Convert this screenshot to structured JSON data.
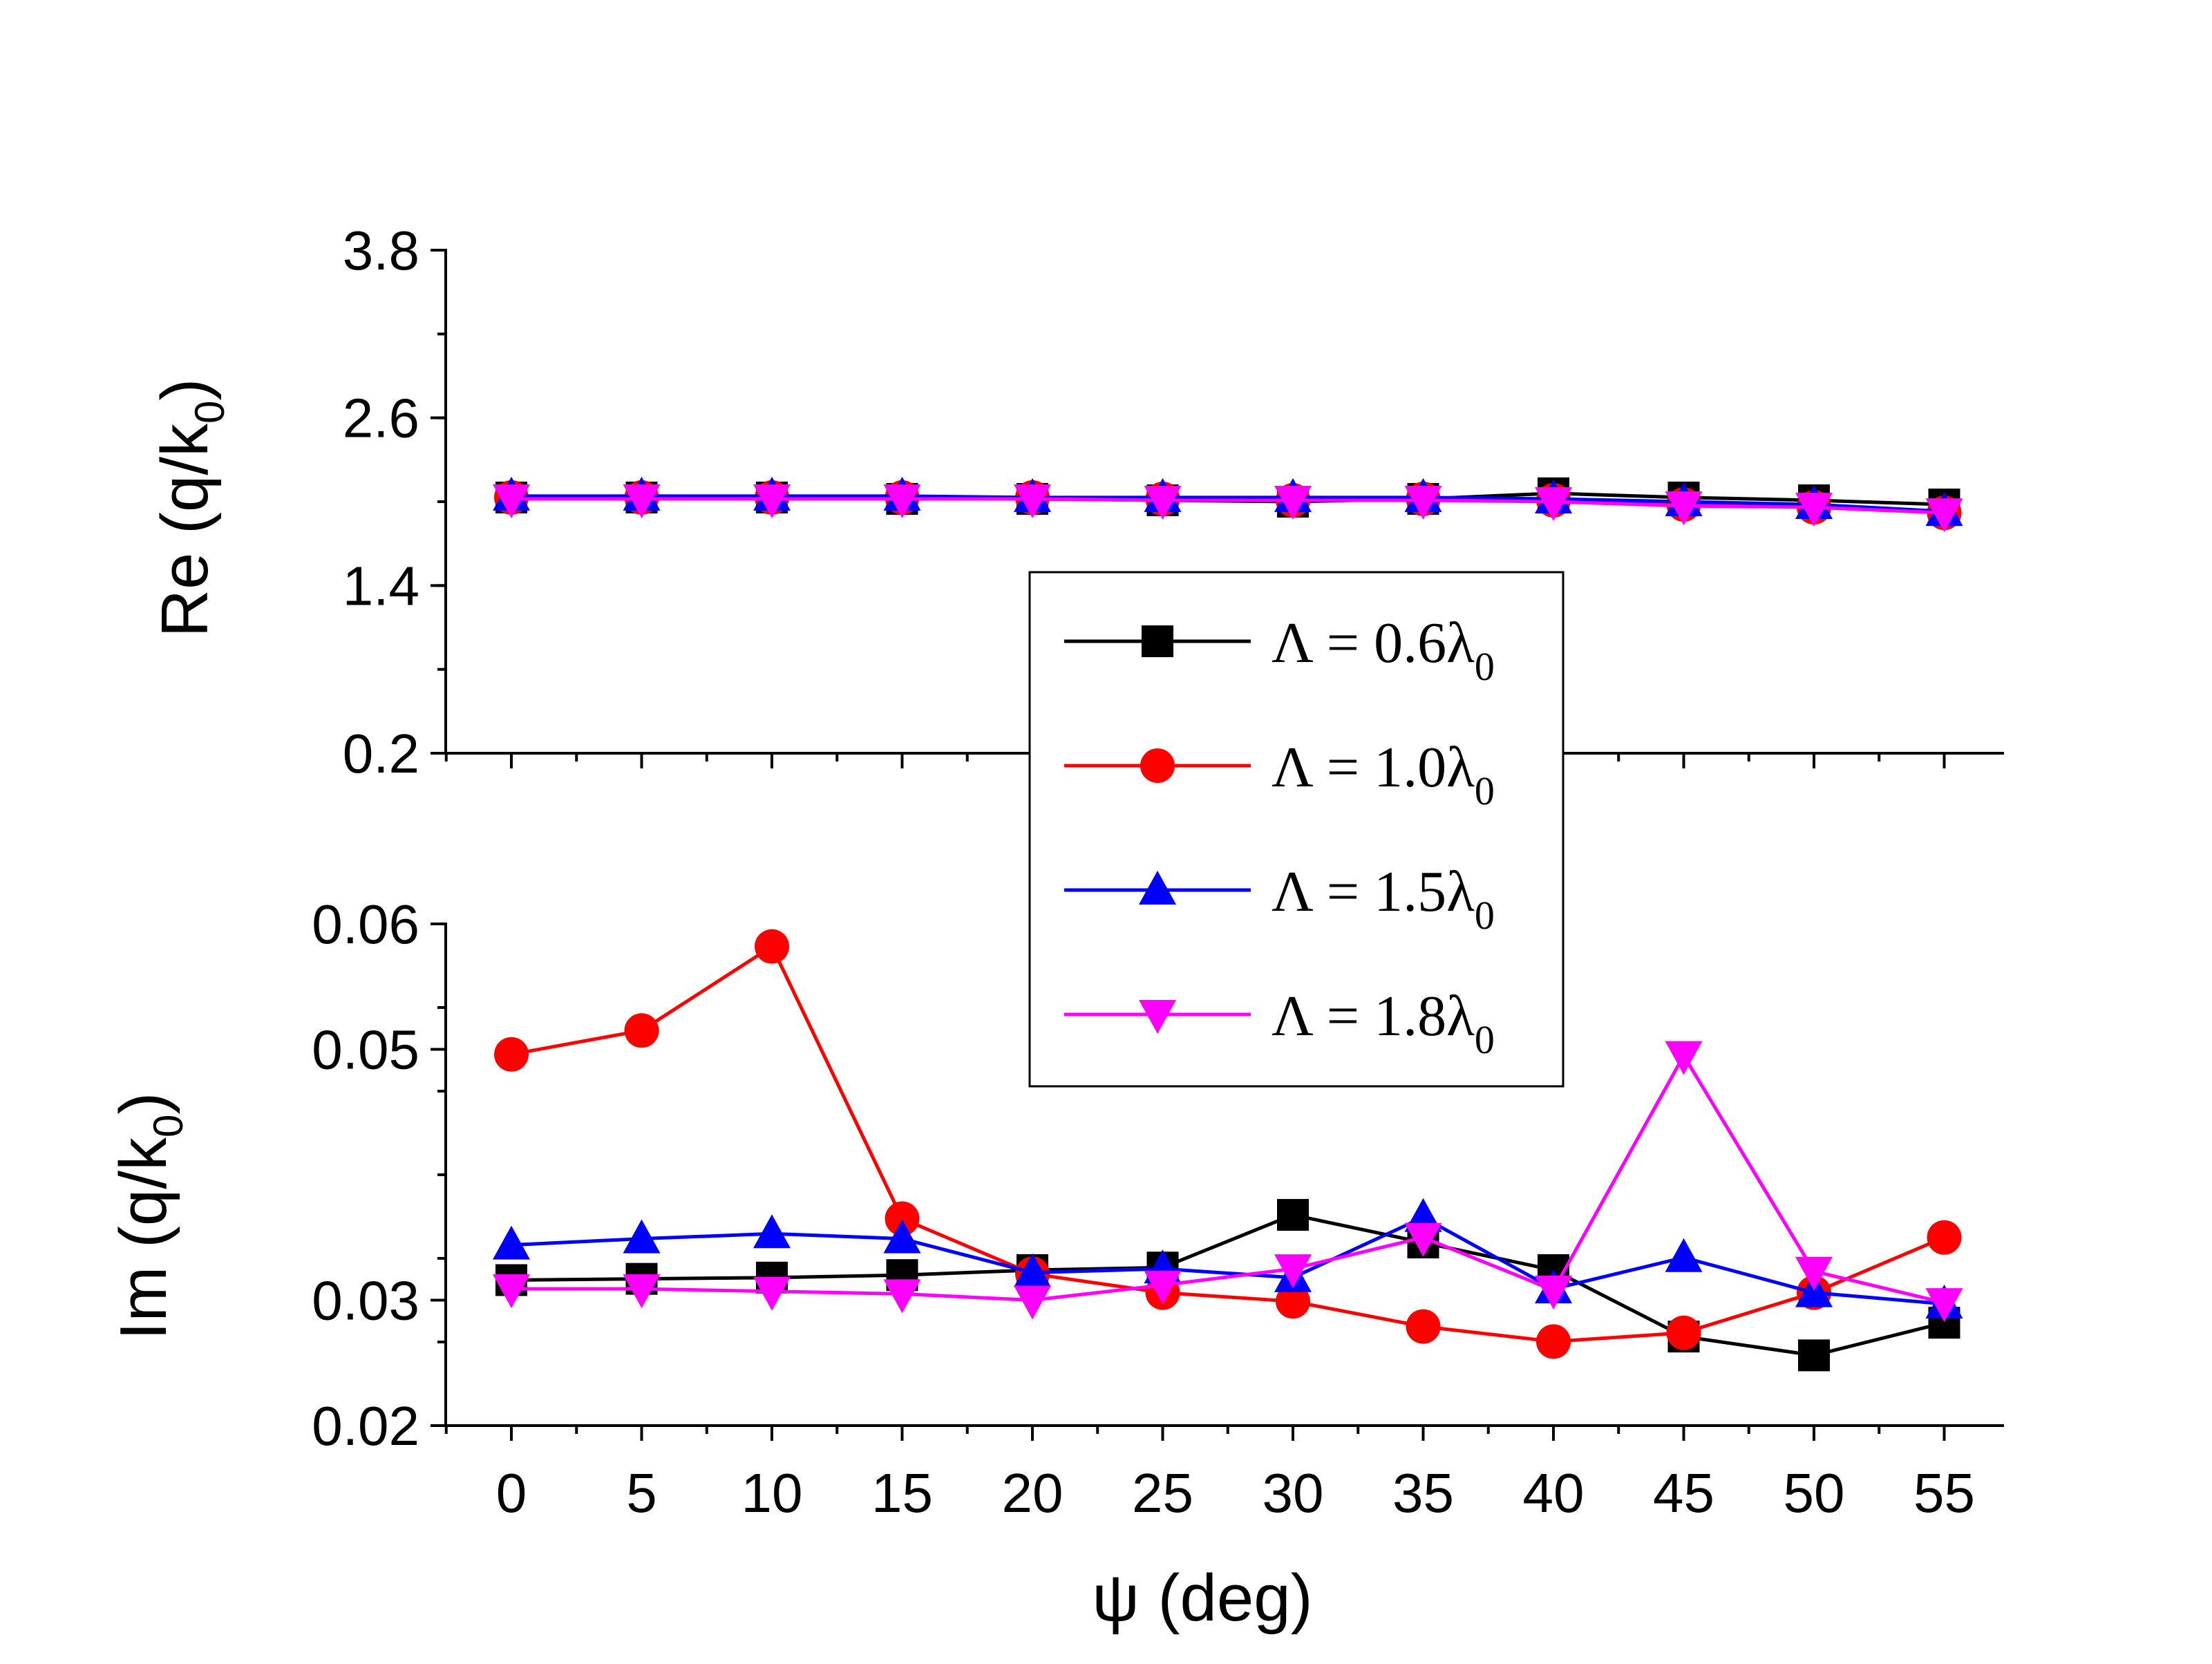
{
  "chart_data": [
    {
      "type": "line",
      "panel": "top",
      "ylabel": {
        "main": "Re (q/k",
        "sub": "0",
        "close": ")"
      },
      "xlabel": "",
      "ylim": [
        0.2,
        3.8
      ],
      "yticks": [
        "0.2",
        "1.4",
        "2.6",
        "3.8"
      ],
      "x": [
        0,
        5,
        10,
        15,
        20,
        25,
        30,
        35,
        40,
        45,
        50,
        55
      ],
      "series": [
        {
          "name": "Λ = 0.6λ0",
          "color": "#000000",
          "marker": "square",
          "values": [
            2.03,
            2.03,
            2.03,
            2.02,
            2.02,
            2.01,
            2.0,
            2.02,
            2.06,
            2.03,
            2.01,
            1.98
          ]
        },
        {
          "name": "Λ = 1.0λ0",
          "color": "#ff0000",
          "marker": "circle",
          "values": [
            2.03,
            2.03,
            2.03,
            2.03,
            2.03,
            2.02,
            2.01,
            2.02,
            2.01,
            1.98,
            1.96,
            1.92
          ]
        },
        {
          "name": "Λ = 1.5λ0",
          "color": "#0000ff",
          "marker": "triangle-up",
          "values": [
            2.04,
            2.04,
            2.04,
            2.04,
            2.03,
            2.03,
            2.03,
            2.03,
            2.02,
            2.0,
            1.98,
            1.93
          ]
        },
        {
          "name": "Λ = 1.8λ0",
          "color": "#ff00ff",
          "marker": "triangle-down",
          "values": [
            2.02,
            2.02,
            2.02,
            2.02,
            2.02,
            2.01,
            2.01,
            2.01,
            2.0,
            1.97,
            1.96,
            1.92
          ]
        }
      ]
    },
    {
      "type": "line",
      "panel": "bottom",
      "ylabel": {
        "main": "Im (q/k",
        "sub": "0",
        "close": ")"
      },
      "xlabel": "ψ (deg)",
      "ylim": [
        0.02,
        0.06
      ],
      "yticks": [
        "0.02",
        "0.03",
        "0.05",
        "0.06"
      ],
      "xticks": [
        "0",
        "5",
        "10",
        "15",
        "20",
        "25",
        "30",
        "35",
        "40",
        "45",
        "50",
        "55"
      ],
      "x": [
        0,
        5,
        10,
        15,
        20,
        25,
        30,
        35,
        40,
        45,
        50,
        55
      ],
      "series": [
        {
          "name": "Λ = 0.6λ0",
          "color": "#000000",
          "marker": "square",
          "values": [
            0.0316,
            0.0317,
            0.0318,
            0.032,
            0.0324,
            0.0326,
            0.0368,
            0.0346,
            0.0324,
            0.0271,
            0.0256,
            0.0282
          ]
        },
        {
          "name": "Λ = 1.0λ0",
          "color": "#ff0000",
          "marker": "circle",
          "values": [
            0.0496,
            0.0515,
            0.0582,
            0.0365,
            0.0321,
            0.0306,
            0.0299,
            0.0279,
            0.0267,
            0.0274,
            0.0306,
            0.035
          ]
        },
        {
          "name": "Λ = 1.5λ0",
          "color": "#0000ff",
          "marker": "triangle-up",
          "values": [
            0.0344,
            0.0349,
            0.0353,
            0.0349,
            0.0322,
            0.0325,
            0.0318,
            0.0366,
            0.0309,
            0.0334,
            0.0306,
            0.0297
          ]
        },
        {
          "name": "Λ = 1.8λ0",
          "color": "#ff00ff",
          "marker": "triangle-down",
          "values": [
            0.0309,
            0.0309,
            0.0307,
            0.0305,
            0.03,
            0.0312,
            0.0325,
            0.035,
            0.0308,
            0.0495,
            0.0323,
            0.0298
          ]
        }
      ]
    }
  ],
  "legend": {
    "placement": "center-right, overlapping both panels",
    "items": [
      {
        "prefix": "Λ = 0.6λ",
        "sub": "0",
        "color": "#000000",
        "marker": "square"
      },
      {
        "prefix": "Λ = 1.0λ",
        "sub": "0",
        "color": "#ff0000",
        "marker": "circle"
      },
      {
        "prefix": "Λ = 1.5λ",
        "sub": "0",
        "color": "#0000ff",
        "marker": "triangle-up"
      },
      {
        "prefix": "Λ = 1.8λ",
        "sub": "0",
        "color": "#ff00ff",
        "marker": "triangle-down"
      }
    ]
  }
}
